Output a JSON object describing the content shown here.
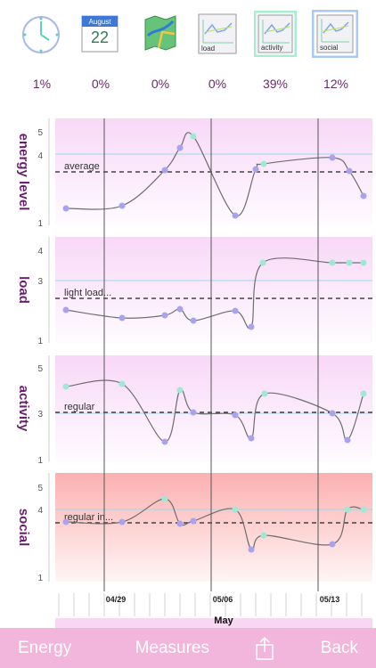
{
  "toolbar": {
    "calendar_month": "August",
    "calendar_day": "22",
    "items": [
      {
        "name": "clock",
        "label": "",
        "percent": "1%"
      },
      {
        "name": "calendar",
        "label": "",
        "percent": "0%"
      },
      {
        "name": "map",
        "label": "",
        "percent": "0%"
      },
      {
        "name": "load",
        "label": "load",
        "percent": "0%"
      },
      {
        "name": "activity",
        "label": "activity",
        "percent": "39%"
      },
      {
        "name": "social",
        "label": "social",
        "percent": "12%"
      }
    ]
  },
  "charts": [
    {
      "title": "energy level",
      "baseline_label": "average",
      "ticks": [
        "5",
        "4",
        "1"
      ]
    },
    {
      "title": "load",
      "baseline_label": "light load...",
      "ticks": [
        "4",
        "3",
        "1"
      ]
    },
    {
      "title": "activity",
      "baseline_label": "regular",
      "ticks": [
        "5",
        "3",
        "1"
      ]
    },
    {
      "title": "social",
      "baseline_label": "regular in...",
      "ticks": [
        "5",
        "4",
        "1"
      ]
    }
  ],
  "x_axis": {
    "date_labels": [
      "04/29",
      "05/06",
      "05/13"
    ],
    "month": "May"
  },
  "bottom_nav": {
    "left": "Energy",
    "center": "Measures",
    "right": "Back"
  },
  "chart_data": [
    {
      "type": "line",
      "title": "energy level",
      "ylim": [
        1,
        5
      ],
      "x": [
        "04/26",
        "04/29",
        "05/01",
        "05/02",
        "05/03",
        "05/07",
        "05/08",
        "05/09",
        "05/13",
        "05/14",
        "05/15"
      ],
      "values": [
        1.6,
        1.7,
        2.9,
        3.8,
        4.3,
        1.3,
        2.9,
        3.1,
        4.5,
        3.0,
        2.3
      ],
      "baseline": 3.0
    },
    {
      "type": "line",
      "title": "load",
      "ylim": [
        1,
        4
      ],
      "x": [
        "04/26",
        "04/29",
        "05/01",
        "05/02",
        "05/03",
        "05/06",
        "05/07",
        "05/08",
        "05/13",
        "05/14",
        "05/15"
      ],
      "values": [
        2.4,
        2.2,
        2.3,
        2.5,
        2.3,
        2.2,
        1.7,
        3.7,
        3.7,
        3.7,
        3.7
      ],
      "baseline": 2.5
    },
    {
      "type": "line",
      "title": "activity",
      "ylim": [
        1,
        5
      ],
      "x": [
        "04/26",
        "04/29",
        "05/01",
        "05/02",
        "05/03",
        "05/06",
        "05/07",
        "05/08",
        "05/13",
        "05/14",
        "05/15"
      ],
      "values": [
        4.6,
        4.4,
        2.1,
        4.2,
        3.0,
        3.0,
        1.9,
        3.8,
        3.0,
        2.0,
        3.8
      ],
      "baseline": 3.0
    },
    {
      "type": "line",
      "title": "social",
      "ylim": [
        1,
        5
      ],
      "x": [
        "04/26",
        "04/29",
        "05/01",
        "05/02",
        "05/03",
        "05/06",
        "05/07",
        "05/08",
        "05/13",
        "05/14",
        "05/15"
      ],
      "values": [
        3.3,
        3.3,
        4.3,
        3.2,
        3.3,
        4.0,
        1.9,
        2.4,
        2.3,
        4.0,
        4.0
      ],
      "baseline": 3.3
    }
  ],
  "colors": {
    "title": "#6b1e6e",
    "line": "#6e6e6e",
    "point_blue": "#a9a3ef",
    "point_teal": "#9ee8d4",
    "reference_line": "#9ed8ee",
    "social_bg": "#fbb3b3",
    "nav_bg": "#f2b5dc"
  }
}
